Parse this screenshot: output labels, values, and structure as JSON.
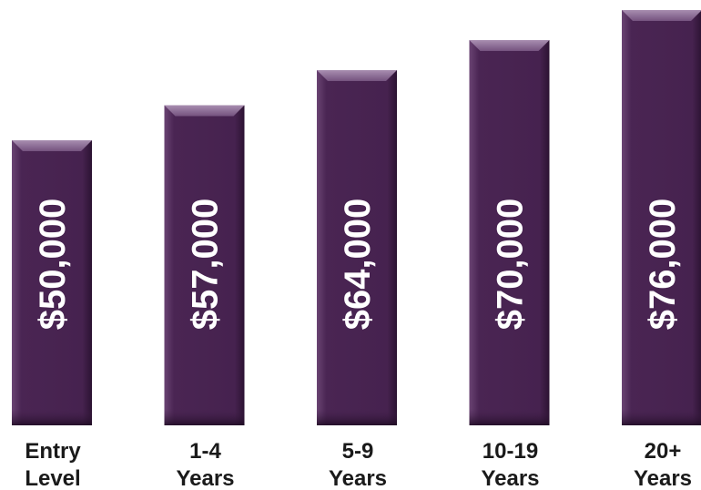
{
  "chart_data": {
    "type": "bar",
    "categories": [
      [
        "Entry",
        "Level"
      ],
      [
        "1-4",
        "Years"
      ],
      [
        "5-9",
        "Years"
      ],
      [
        "10-19",
        "Years"
      ],
      [
        "20+",
        "Years"
      ]
    ],
    "values": [
      50000,
      57000,
      64000,
      70000,
      76000
    ],
    "value_labels": [
      "$50,000",
      "$57,000",
      "$64,000",
      "$70,000",
      "$76,000"
    ],
    "value_label_orientation": "vertical",
    "title": "",
    "xlabel": "",
    "ylabel": "",
    "grid": false,
    "legend": "none",
    "colors": {
      "bar": "#46224f",
      "bar_dark": "#2a1230",
      "bar_light": "#6e4a78",
      "value_text": "#ffffff",
      "category_text": "#1a1a1a"
    }
  }
}
